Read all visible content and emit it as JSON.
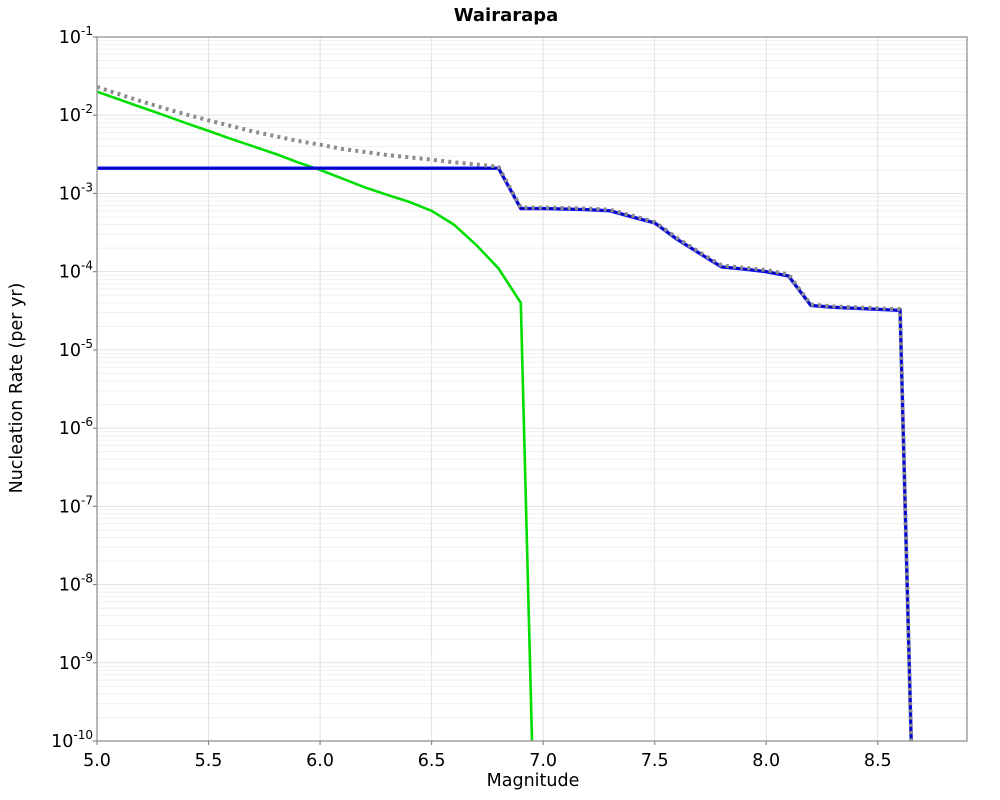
{
  "chart_data": {
    "type": "line",
    "title": "Wairarapa",
    "xlabel": "Magnitude",
    "ylabel": "Nucleation Rate (per yr)",
    "xlim": [
      5.0,
      8.9
    ],
    "yscale": "log",
    "ylim": [
      1e-10,
      0.1
    ],
    "grid": true,
    "legend": "none",
    "x_ticks": [
      {
        "v": 5.0,
        "label": "5.0"
      },
      {
        "v": 5.5,
        "label": "5.5"
      },
      {
        "v": 6.0,
        "label": "6.0"
      },
      {
        "v": 6.5,
        "label": "6.5"
      },
      {
        "v": 7.0,
        "label": "7.0"
      },
      {
        "v": 7.5,
        "label": "7.5"
      },
      {
        "v": 8.0,
        "label": "8.0"
      },
      {
        "v": 8.5,
        "label": "8.5"
      }
    ],
    "y_tick_exponents": [
      -1,
      -2,
      -3,
      -4,
      -5,
      -6,
      -7,
      -8,
      -9,
      -10
    ],
    "colors": {
      "axis_border": "#9a9a9a",
      "grid_major": "#e2e2e2",
      "grid_minor": "#efefef",
      "tick": "#888888",
      "total_dotted_gray": "#8c8c8c",
      "background_green": "#00dd00",
      "fault_blue": "#0f0fff",
      "fault_blue_core": "#000099"
    },
    "series": [
      {
        "name": "background-gr-green",
        "color": "#00dd00",
        "style": "solid",
        "width": 2.6,
        "points": [
          [
            5.0,
            0.02
          ],
          [
            5.1,
            0.0159
          ],
          [
            5.2,
            0.0126
          ],
          [
            5.3,
            0.01
          ],
          [
            5.4,
            0.0079
          ],
          [
            5.5,
            0.0063
          ],
          [
            5.6,
            0.005
          ],
          [
            5.7,
            0.004
          ],
          [
            5.8,
            0.0032
          ],
          [
            5.9,
            0.0025
          ],
          [
            6.0,
            0.002
          ],
          [
            6.1,
            0.00155
          ],
          [
            6.2,
            0.0012
          ],
          [
            6.3,
            0.00096
          ],
          [
            6.4,
            0.00078
          ],
          [
            6.5,
            0.0006
          ],
          [
            6.6,
            0.0004
          ],
          [
            6.7,
            0.00022
          ],
          [
            6.8,
            0.00011
          ],
          [
            6.9,
            4e-05
          ],
          [
            6.95,
            1e-10
          ]
        ]
      },
      {
        "name": "fault-mfd-blue",
        "color": "#0f0fff",
        "style": "solid",
        "width": 3.4,
        "core": "#000099",
        "points": [
          [
            5.0,
            0.0021
          ],
          [
            6.8,
            0.0021
          ],
          [
            6.9,
            0.00064
          ],
          [
            7.0,
            0.00064
          ],
          [
            7.1,
            0.00063
          ],
          [
            7.2,
            0.00062
          ],
          [
            7.3,
            0.0006
          ],
          [
            7.4,
            0.0005
          ],
          [
            7.5,
            0.00042
          ],
          [
            7.6,
            0.00026
          ],
          [
            7.7,
            0.000172
          ],
          [
            7.8,
            0.000115
          ],
          [
            7.9,
            0.000108
          ],
          [
            8.0,
            0.0001
          ],
          [
            8.1,
            8.8e-05
          ],
          [
            8.2,
            3.7e-05
          ],
          [
            8.3,
            3.5e-05
          ],
          [
            8.4,
            3.4e-05
          ],
          [
            8.5,
            3.3e-05
          ],
          [
            8.6,
            3.2e-05
          ],
          [
            8.65,
            1e-10
          ]
        ]
      },
      {
        "name": "total-rate-dotted-gray",
        "color": "#8c8c8c",
        "style": "dotted",
        "width": 4,
        "points": [
          [
            5.0,
            0.023
          ],
          [
            5.1,
            0.0185
          ],
          [
            5.2,
            0.015
          ],
          [
            5.3,
            0.0123
          ],
          [
            5.4,
            0.0102
          ],
          [
            5.5,
            0.0086
          ],
          [
            5.6,
            0.0073
          ],
          [
            5.7,
            0.0062
          ],
          [
            5.8,
            0.0054
          ],
          [
            5.9,
            0.0047
          ],
          [
            6.0,
            0.0042
          ],
          [
            6.1,
            0.0037
          ],
          [
            6.2,
            0.0034
          ],
          [
            6.3,
            0.0031
          ],
          [
            6.4,
            0.0029
          ],
          [
            6.5,
            0.0027
          ],
          [
            6.6,
            0.0025
          ],
          [
            6.7,
            0.00235
          ],
          [
            6.8,
            0.0022
          ],
          [
            6.9,
            0.00066
          ],
          [
            7.0,
            0.00066
          ],
          [
            7.1,
            0.00065
          ],
          [
            7.2,
            0.00064
          ],
          [
            7.3,
            0.00062
          ],
          [
            7.4,
            0.00052
          ],
          [
            7.5,
            0.00043
          ],
          [
            7.6,
            0.00027
          ],
          [
            7.7,
            0.000178
          ],
          [
            7.8,
            0.00012
          ],
          [
            7.9,
            0.000112
          ],
          [
            8.0,
            0.000105
          ],
          [
            8.1,
            9.2e-05
          ],
          [
            8.2,
            3.8e-05
          ],
          [
            8.3,
            3.6e-05
          ],
          [
            8.4,
            3.5e-05
          ],
          [
            8.5,
            3.4e-05
          ],
          [
            8.6,
            3.3e-05
          ],
          [
            8.65,
            1e-10
          ]
        ]
      }
    ]
  }
}
